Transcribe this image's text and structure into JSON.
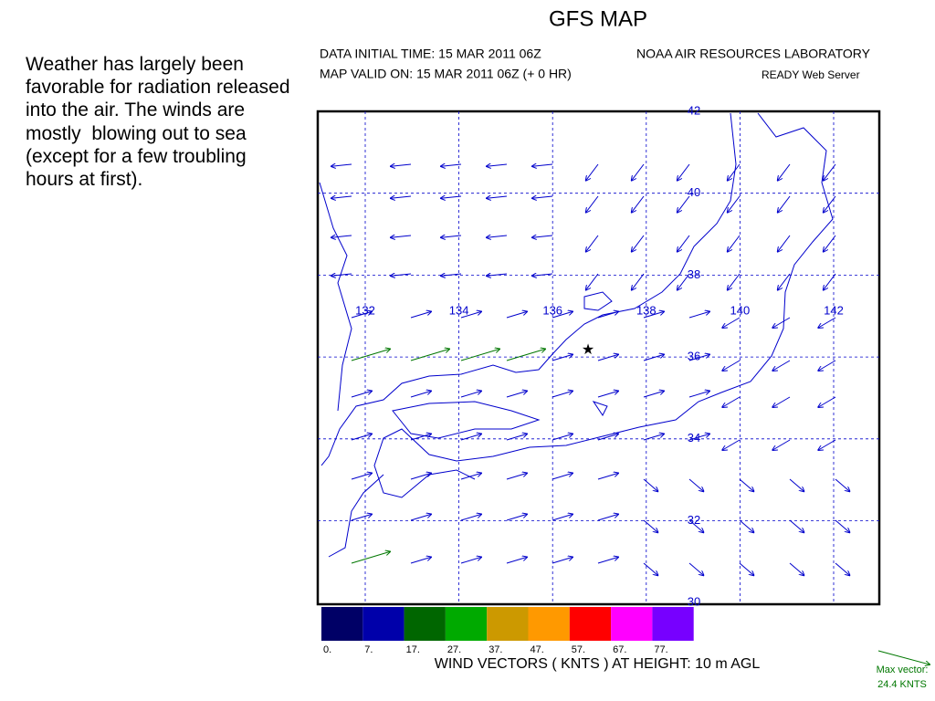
{
  "slide": {
    "text": "Weather has largely been favorable for radiation released into the air. The winds are mostly  blowing out to sea (except for a few troubling hours at first)."
  },
  "map": {
    "title": "GFS MAP",
    "initial_time": "DATA INITIAL TIME: 15 MAR 2011 06Z",
    "lab": "NOAA AIR RESOURCES LABORATORY",
    "valid_time": "MAP VALID ON: 15 MAR 2011 06Z (+  0 HR)",
    "server": "READY Web Server",
    "longitudes": [
      "132",
      "134",
      "136",
      "138",
      "140",
      "142"
    ],
    "latitudes": [
      "42",
      "40",
      "38",
      "36",
      "34",
      "32",
      "30"
    ],
    "legend": {
      "labels": [
        "0.",
        "7.",
        "17.",
        "27.",
        "37.",
        "47.",
        "57.",
        "67.",
        "77."
      ],
      "colors": [
        "#000066",
        "#0000aa",
        "#006600",
        "#00aa00",
        "#cc9900",
        "#ff9900",
        "#ff0000",
        "#ff00ff",
        "#7700ff"
      ]
    },
    "caption": "WIND VECTORS ( KNTS ) AT HEIGHT: 10 m AGL",
    "max_vector": {
      "label": "Max vector:",
      "value": "24.4 KNTS"
    }
  }
}
